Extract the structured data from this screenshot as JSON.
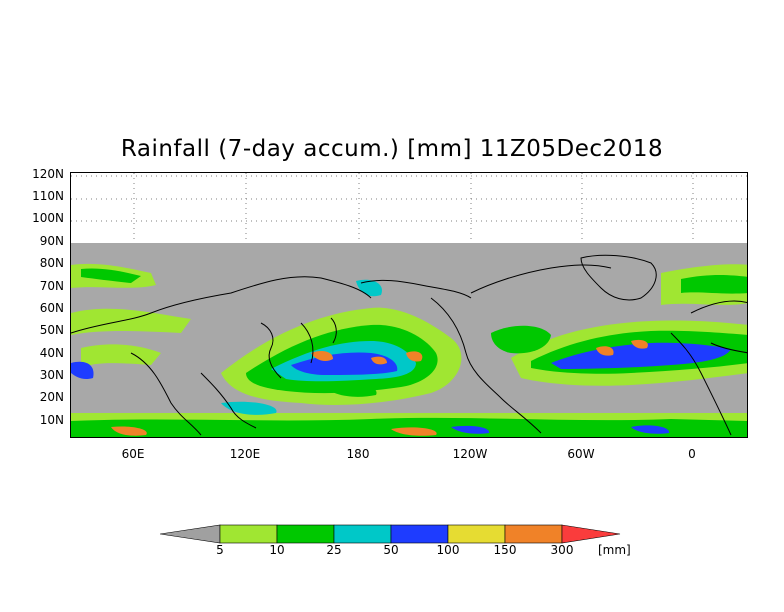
{
  "title": "Rainfall (7-day accum.) [mm] 11Z05Dec2018",
  "latitude_labels": [
    "120N",
    "110N",
    "100N",
    "90N",
    "80N",
    "70N",
    "60N",
    "50N",
    "40N",
    "30N",
    "20N",
    "10N"
  ],
  "longitude_labels": [
    "60E",
    "120E",
    "180",
    "120W",
    "60W",
    "0"
  ],
  "colorbar": {
    "thresholds": [
      "5",
      "10",
      "25",
      "50",
      "100",
      "150",
      "300"
    ],
    "unit": "[mm]",
    "colors": [
      "#a0a0a0",
      "#a0e632",
      "#00c800",
      "#00c8c8",
      "#1e3cff",
      "#e6dc32",
      "#f08228",
      "#fa3c3c"
    ]
  },
  "colors": {
    "land_background": "#a8a8a8",
    "coastline": "#000000",
    "grid": "#808080"
  }
}
